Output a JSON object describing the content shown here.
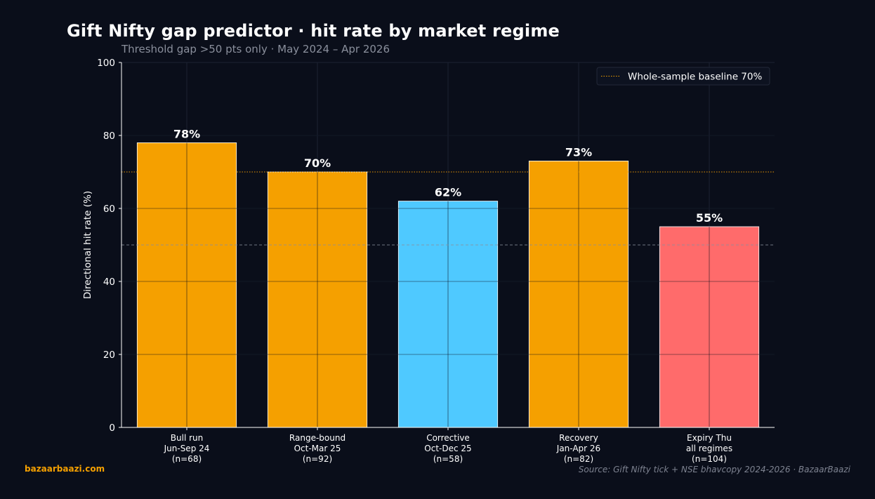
{
  "header": {
    "title": "Gift Nifty gap predictor · hit rate by market regime",
    "subtitle": "Threshold gap >50 pts only  ·  May 2024 – Apr 2026"
  },
  "footer": {
    "brand": "bazaarbaazi.com",
    "source": "Source: Gift Nifty tick + NSE bhavcopy 2024-2026  ·  BazaarBaazi"
  },
  "colors": {
    "background": "#0a0e1a",
    "orange": "#f5a000",
    "blue": "#4fc9ff",
    "red": "#ff6b6b",
    "axis": "#ffffff",
    "grid": "#1c2233",
    "baseline": "#f5a000",
    "chance": "#8a8f9c"
  },
  "chart_data": {
    "type": "bar",
    "title": "Gift Nifty gap predictor · hit rate by market regime",
    "subtitle": "Threshold gap >50 pts only  ·  May 2024 – Apr 2026",
    "xlabel": "",
    "ylabel": "Directional hit rate (%)",
    "ylim": [
      0,
      100
    ],
    "yticks": [
      0,
      20,
      40,
      60,
      80,
      100
    ],
    "grid": true,
    "categories": [
      [
        "Bull run",
        "Jun-Sep 24",
        "(n=68)"
      ],
      [
        "Range-bound",
        "Oct-Mar 25",
        "(n=92)"
      ],
      [
        "Corrective",
        "Oct-Dec 25",
        "(n=58)"
      ],
      [
        "Recovery",
        "Jan-Apr 26",
        "(n=82)"
      ],
      [
        "Expiry Thu",
        "all regimes",
        "(n=104)"
      ]
    ],
    "values": [
      78,
      70,
      62,
      73,
      55
    ],
    "value_labels": [
      "78%",
      "70%",
      "62%",
      "73%",
      "55%"
    ],
    "bar_colors": [
      "#f5a000",
      "#f5a000",
      "#4fc9ff",
      "#f5a000",
      "#ff6b6b"
    ],
    "reference_lines": [
      {
        "value": 70,
        "style": "dotted",
        "color": "#f5a000",
        "label": "Whole-sample baseline 70%"
      },
      {
        "value": 50,
        "style": "dashed",
        "color": "#8a8f9c",
        "label": ""
      }
    ],
    "legend": {
      "placement": "top-right",
      "entries": [
        "Whole-sample baseline 70%"
      ]
    }
  }
}
